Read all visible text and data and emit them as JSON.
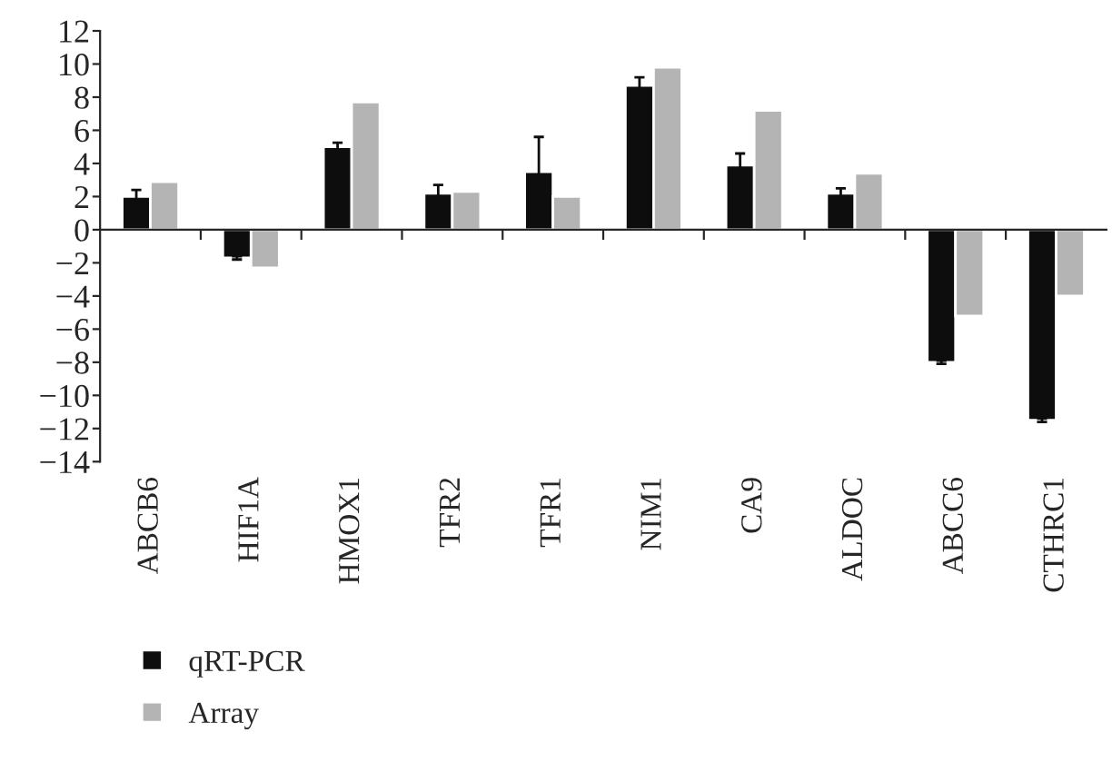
{
  "chart_data": {
    "type": "bar",
    "categories": [
      "ABCB6",
      "HIF1A",
      "HMOX1",
      "TFR2",
      "TFR1",
      "NIM1",
      "CA9",
      "ALDOC",
      "ABCC6",
      "CTHRC1"
    ],
    "series": [
      {
        "name": "qRT-PCR",
        "color": "#0d0d0d",
        "values": [
          2.0,
          -1.7,
          5.0,
          2.2,
          3.5,
          8.7,
          3.9,
          2.2,
          -8.0,
          -11.5
        ],
        "errors": [
          0.4,
          0.1,
          0.25,
          0.5,
          2.1,
          0.5,
          0.7,
          0.3,
          0.1,
          0.1
        ]
      },
      {
        "name": "Array",
        "color": "#b4b4b4",
        "values": [
          2.9,
          -2.3,
          7.7,
          2.3,
          2.0,
          9.8,
          7.2,
          3.4,
          -5.2,
          -4.0
        ]
      }
    ],
    "ylim": [
      -14,
      12
    ],
    "yticks": [
      {
        "value": -14,
        "label": "−14"
      },
      {
        "value": -12,
        "label": "−12"
      },
      {
        "value": -10,
        "label": "−10"
      },
      {
        "value": -8,
        "label": "−8"
      },
      {
        "value": -6,
        "label": "−6"
      },
      {
        "value": -4,
        "label": "−4"
      },
      {
        "value": -2,
        "label": "−2"
      },
      0,
      2,
      4,
      6,
      8,
      10,
      12
    ],
    "legend": "bottom left"
  }
}
